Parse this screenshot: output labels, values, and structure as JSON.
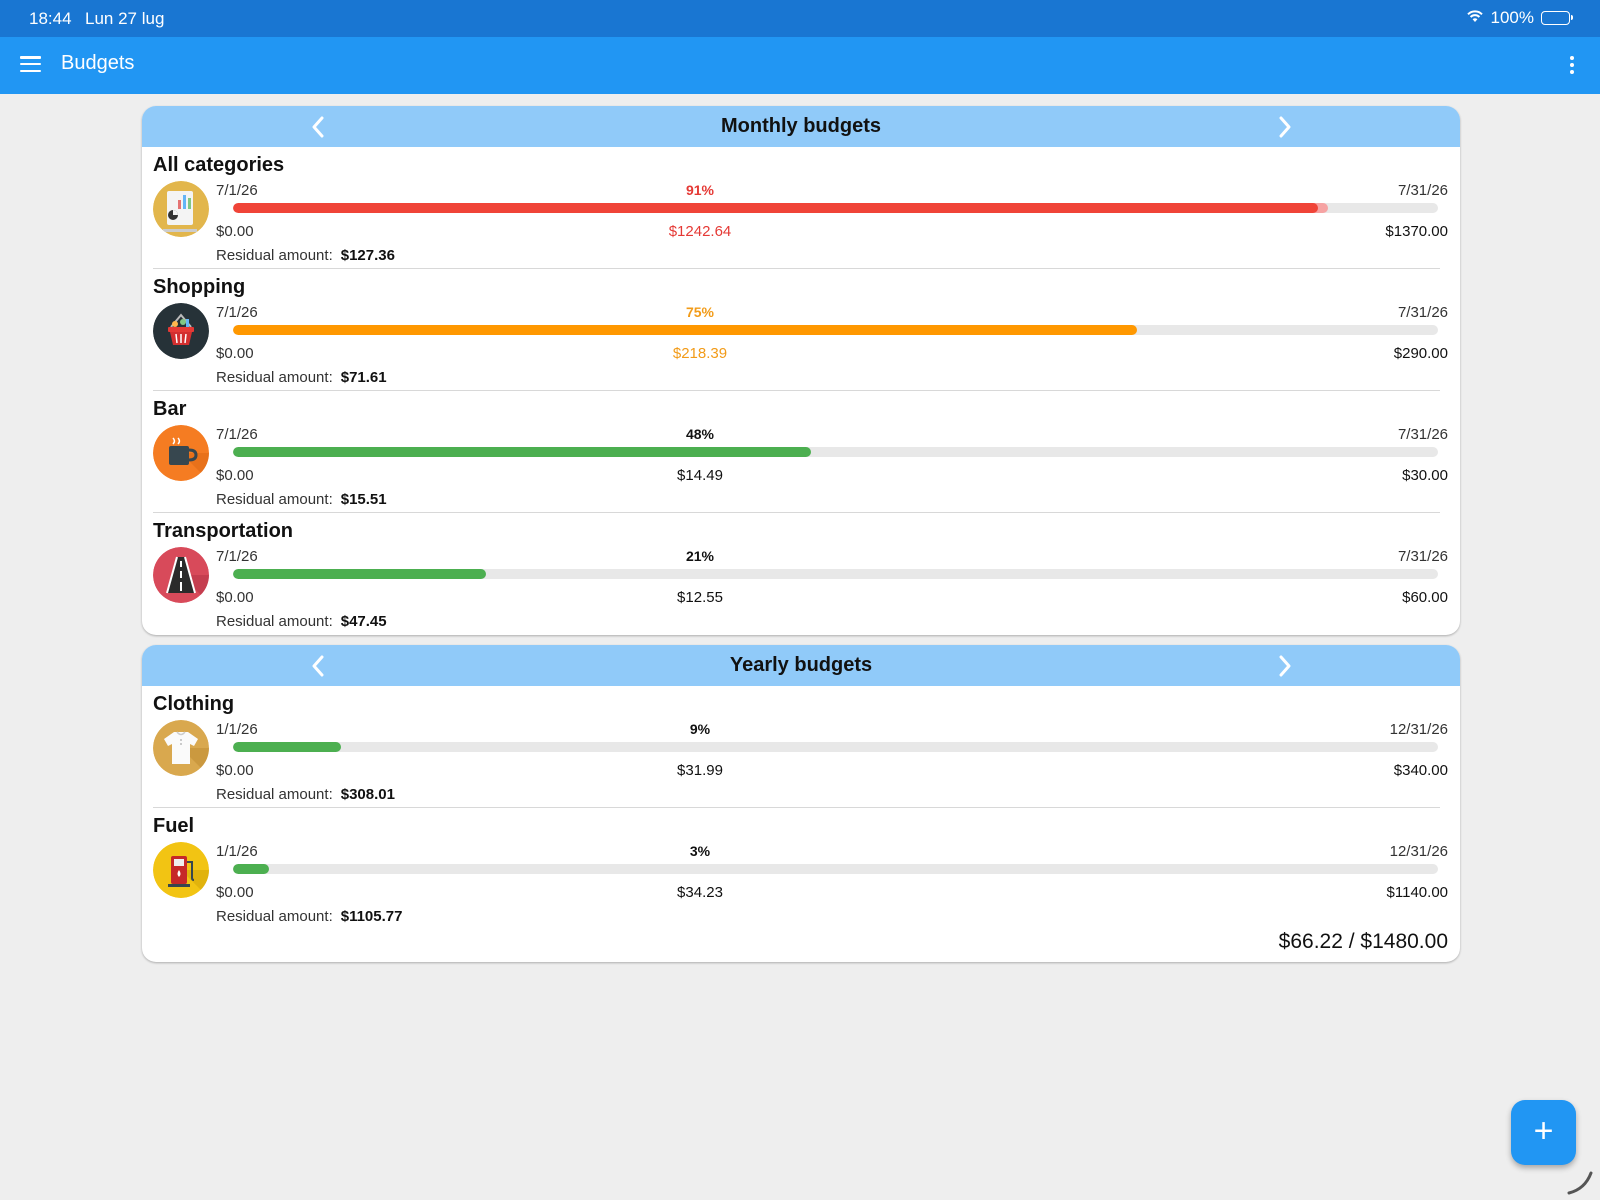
{
  "status_bar": {
    "time": "18:44",
    "date": "Lun 27 lug",
    "battery": "100%"
  },
  "app_bar": {
    "title": "Budgets"
  },
  "monthly": {
    "header": "Monthly budgets",
    "items": [
      {
        "name": "All categories",
        "start": "7/1/26",
        "end": "7/31/26",
        "percent": "91%",
        "progress": 0.9,
        "min": "$0.00",
        "spent": "$1242.64",
        "max": "$1370.00",
        "residual_label": "Residual amount:",
        "residual": "$127.36",
        "color": "#f04438",
        "icon": "all-categories-icon"
      },
      {
        "name": "Shopping",
        "start": "7/1/26",
        "end": "7/31/26",
        "percent": "75%",
        "progress": 0.75,
        "min": "$0.00",
        "spent": "$218.39",
        "max": "$290.00",
        "residual_label": "Residual amount:",
        "residual": "$71.61",
        "color": "#ff9800",
        "icon": "shopping-basket-icon"
      },
      {
        "name": "Bar",
        "start": "7/1/26",
        "end": "7/31/26",
        "percent": "48%",
        "progress": 0.48,
        "min": "$0.00",
        "spent": "$14.49",
        "max": "$30.00",
        "residual_label": "Residual amount:",
        "residual": "$15.51",
        "color": "#4caf50",
        "icon": "coffee-cup-icon"
      },
      {
        "name": "Transportation",
        "start": "7/1/26",
        "end": "7/31/26",
        "percent": "21%",
        "progress": 0.21,
        "min": "$0.00",
        "spent": "$12.55",
        "max": "$60.00",
        "residual_label": "Residual amount:",
        "residual": "$47.45",
        "color": "#4caf50",
        "icon": "road-icon"
      }
    ]
  },
  "yearly": {
    "header": "Yearly budgets",
    "items": [
      {
        "name": "Clothing",
        "start": "1/1/26",
        "end": "12/31/26",
        "percent": "9%",
        "progress": 0.09,
        "min": "$0.00",
        "spent": "$31.99",
        "max": "$340.00",
        "residual_label": "Residual amount:",
        "residual": "$308.01",
        "color": "#4caf50",
        "icon": "shirt-icon"
      },
      {
        "name": "Fuel",
        "start": "1/1/26",
        "end": "12/31/26",
        "percent": "3%",
        "progress": 0.03,
        "min": "$0.00",
        "spent": "$34.23",
        "max": "$1140.00",
        "residual_label": "Residual amount:",
        "residual": "$1105.77",
        "color": "#4caf50",
        "icon": "fuel-pump-icon"
      }
    ],
    "total": "$66.22 / $1480.00"
  },
  "fab": {
    "label": "+"
  }
}
